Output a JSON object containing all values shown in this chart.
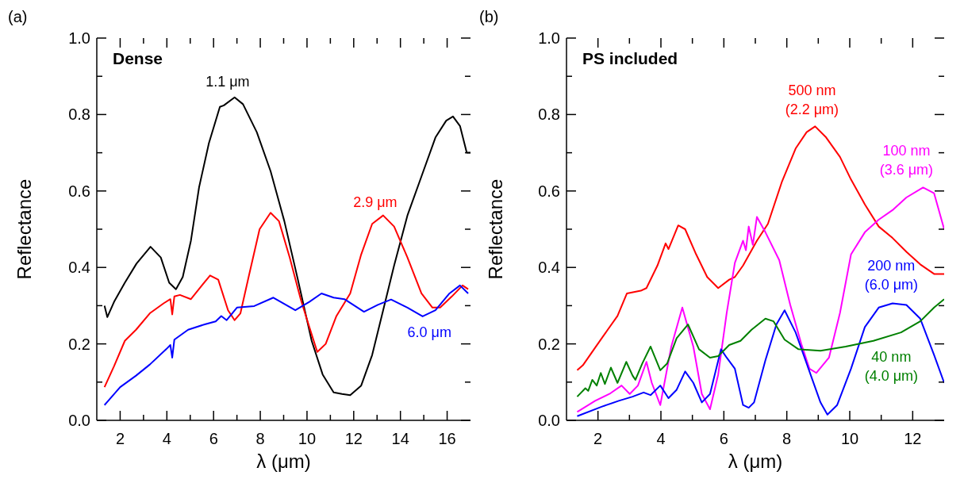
{
  "chart_data": [
    {
      "type": "line",
      "title": "Dense",
      "xlabel": "λ (μm)",
      "ylabel": "Reflectance",
      "xlim": [
        1,
        17
      ],
      "ylim": [
        0,
        1
      ],
      "xticks": [
        2,
        {
          "value": 3,
          "label": null
        },
        4,
        {
          "value": 5,
          "label": null
        },
        6,
        {
          "value": 7,
          "label": null
        },
        8,
        {
          "value": 9,
          "label": null
        },
        10,
        {
          "value": 11,
          "label": null
        },
        12,
        {
          "value": 13,
          "label": null
        },
        14,
        {
          "value": 15,
          "label": null
        },
        16
      ],
      "yticks": [
        {
          "value": 0,
          "label": "0.0"
        },
        {
          "value": 0.1,
          "label": null
        },
        {
          "value": 0.2,
          "label": "0.2"
        },
        {
          "value": 0.3,
          "label": null
        },
        {
          "value": 0.4,
          "label": "0.4"
        },
        {
          "value": 0.5,
          "label": null
        },
        {
          "value": 0.6,
          "label": "0.6"
        },
        {
          "value": 0.7,
          "label": null
        },
        {
          "value": 0.8,
          "label": "0.8"
        },
        {
          "value": 0.9,
          "label": null
        },
        {
          "value": 1,
          "label": "1.0"
        }
      ],
      "marker": "none",
      "line_style": "solid",
      "annotations": [
        "(a)"
      ],
      "series": [
        {
          "name": "1.1 μm",
          "color": "#000000",
          "x": [
            1.33,
            1.45,
            1.74,
            2.2,
            2.7,
            3.3,
            3.74,
            4.1,
            4.39,
            4.68,
            5.03,
            5.38,
            5.8,
            6.27,
            6.44,
            6.9,
            7.26,
            7.85,
            8.44,
            9.03,
            9.61,
            10.2,
            10.67,
            11.14,
            11.5,
            11.85,
            12.32,
            12.79,
            13.26,
            13.73,
            14.3,
            14.9,
            15.5,
            15.96,
            16.25,
            16.55,
            16.84,
            17.0
          ],
          "values": [
            0.3,
            0.27,
            0.31,
            0.36,
            0.41,
            0.454,
            0.426,
            0.36,
            0.343,
            0.375,
            0.47,
            0.61,
            0.725,
            0.82,
            0.824,
            0.845,
            0.827,
            0.754,
            0.652,
            0.521,
            0.368,
            0.208,
            0.12,
            0.073,
            0.069,
            0.066,
            0.091,
            0.171,
            0.288,
            0.405,
            0.536,
            0.638,
            0.74,
            0.784,
            0.795,
            0.77,
            0.7,
            0.7
          ]
        },
        {
          "name": "2.9 μm",
          "color": "#ff0000",
          "x": [
            1.33,
            1.74,
            2.2,
            2.68,
            3.27,
            3.86,
            4.15,
            4.23,
            4.32,
            4.56,
            5.03,
            5.5,
            5.85,
            6.2,
            6.62,
            6.9,
            7.15,
            7.5,
            7.97,
            8.44,
            8.8,
            9.26,
            9.73,
            10.1,
            10.44,
            10.8,
            11.26,
            11.85,
            12.32,
            12.79,
            13.26,
            13.73,
            14.3,
            14.9,
            15.37,
            15.7,
            16.2,
            16.66,
            16.9
          ],
          "values": [
            0.087,
            0.142,
            0.208,
            0.237,
            0.28,
            0.306,
            0.317,
            0.277,
            0.324,
            0.328,
            0.317,
            0.353,
            0.379,
            0.368,
            0.288,
            0.262,
            0.28,
            0.375,
            0.5,
            0.543,
            0.521,
            0.426,
            0.317,
            0.244,
            0.179,
            0.2,
            0.273,
            0.332,
            0.434,
            0.514,
            0.536,
            0.507,
            0.426,
            0.332,
            0.295,
            0.295,
            0.324,
            0.353,
            0.343
          ]
        },
        {
          "name": "6.0 μm",
          "color": "#0000ff",
          "x": [
            1.33,
            2.0,
            2.68,
            3.27,
            3.97,
            4.15,
            4.23,
            4.32,
            4.91,
            5.62,
            6.09,
            6.33,
            6.56,
            7.0,
            7.74,
            8.56,
            9.5,
            10.1,
            10.62,
            11.14,
            11.6,
            12.44,
            13.03,
            13.6,
            14.3,
            14.95,
            15.5,
            16.1,
            16.55,
            16.9
          ],
          "values": [
            0.04,
            0.087,
            0.117,
            0.146,
            0.186,
            0.197,
            0.164,
            0.211,
            0.237,
            0.251,
            0.259,
            0.273,
            0.262,
            0.295,
            0.299,
            0.321,
            0.288,
            0.31,
            0.332,
            0.321,
            0.317,
            0.284,
            0.302,
            0.316,
            0.295,
            0.272,
            0.288,
            0.332,
            0.353,
            0.332
          ]
        }
      ]
    },
    {
      "type": "line",
      "title": "PS included",
      "xlabel": "λ (μm)",
      "ylabel": "Reflectance",
      "xlim": [
        1,
        13
      ],
      "ylim": [
        0,
        1
      ],
      "xticks": [
        2,
        {
          "value": 3,
          "label": null
        },
        4,
        {
          "value": 5,
          "label": null
        },
        6,
        {
          "value": 7,
          "label": null
        },
        8,
        {
          "value": 9,
          "label": null
        },
        10,
        {
          "value": 11,
          "label": null
        },
        12
      ],
      "yticks": [
        {
          "value": 0,
          "label": "0.0"
        },
        {
          "value": 0.1,
          "label": null
        },
        {
          "value": 0.2,
          "label": "0.2"
        },
        {
          "value": 0.3,
          "label": null
        },
        {
          "value": 0.4,
          "label": "0.4"
        },
        {
          "value": 0.5,
          "label": null
        },
        {
          "value": 0.6,
          "label": "0.6"
        },
        {
          "value": 0.7,
          "label": null
        },
        {
          "value": 0.8,
          "label": "0.8"
        },
        {
          "value": 0.9,
          "label": null
        },
        {
          "value": 1,
          "label": "1.0"
        }
      ],
      "marker": "none",
      "line_style": "solid",
      "annotations": [
        "(b)"
      ],
      "series": [
        {
          "name": "500 nm (2.2 μm)",
          "color": "#ff0000",
          "x": [
            1.34,
            1.52,
            1.91,
            2.31,
            2.62,
            2.92,
            3.36,
            3.54,
            3.89,
            4.15,
            4.24,
            4.55,
            4.77,
            5.12,
            5.47,
            5.82,
            6.17,
            6.35,
            6.61,
            7.05,
            7.4,
            7.84,
            8.28,
            8.63,
            8.9,
            9.25,
            9.69,
            10.04,
            10.48,
            10.92,
            11.36,
            11.8,
            12.24,
            12.68,
            13.0
          ],
          "values": [
            0.131,
            0.144,
            0.19,
            0.237,
            0.273,
            0.332,
            0.339,
            0.346,
            0.405,
            0.463,
            0.448,
            0.51,
            0.5,
            0.434,
            0.375,
            0.346,
            0.368,
            0.375,
            0.405,
            0.47,
            0.514,
            0.623,
            0.711,
            0.754,
            0.769,
            0.74,
            0.689,
            0.63,
            0.565,
            0.507,
            0.477,
            0.441,
            0.408,
            0.383,
            0.383
          ]
        },
        {
          "name": "100 nm (3.6 μm)",
          "color": "#ff00ff",
          "x": [
            1.34,
            1.91,
            2.4,
            2.75,
            3.01,
            3.27,
            3.54,
            3.71,
            3.98,
            4.33,
            4.68,
            5.03,
            5.3,
            5.56,
            5.82,
            6.09,
            6.35,
            6.61,
            6.7,
            6.79,
            6.92,
            7.05,
            7.32,
            7.76,
            8.11,
            8.46,
            8.72,
            8.94,
            9.34,
            9.69,
            10.04,
            10.48,
            10.92,
            11.36,
            11.8,
            12.33,
            12.68,
            13.0
          ],
          "values": [
            0.022,
            0.051,
            0.071,
            0.091,
            0.069,
            0.091,
            0.153,
            0.098,
            0.04,
            0.193,
            0.295,
            0.193,
            0.069,
            0.029,
            0.12,
            0.281,
            0.412,
            0.47,
            0.445,
            0.507,
            0.459,
            0.532,
            0.492,
            0.419,
            0.302,
            0.2,
            0.135,
            0.124,
            0.164,
            0.281,
            0.434,
            0.492,
            0.525,
            0.55,
            0.583,
            0.609,
            0.594,
            0.5
          ]
        },
        {
          "name": "200 nm (6.0 μm)",
          "color": "#0000ff",
          "x": [
            1.34,
            2.13,
            2.66,
            3.1,
            3.45,
            3.67,
            3.98,
            4.24,
            4.5,
            4.77,
            5.03,
            5.3,
            5.56,
            5.91,
            6.09,
            6.35,
            6.61,
            6.79,
            6.96,
            7.32,
            7.67,
            7.93,
            8.28,
            8.72,
            9.07,
            9.29,
            9.6,
            10.04,
            10.48,
            10.92,
            11.36,
            11.8,
            12.24,
            12.68,
            13.0
          ],
          "values": [
            0.011,
            0.036,
            0.051,
            0.062,
            0.073,
            0.066,
            0.091,
            0.058,
            0.08,
            0.128,
            0.098,
            0.047,
            0.069,
            0.186,
            0.164,
            0.135,
            0.04,
            0.033,
            0.047,
            0.157,
            0.251,
            0.288,
            0.23,
            0.128,
            0.047,
            0.015,
            0.04,
            0.135,
            0.244,
            0.295,
            0.306,
            0.302,
            0.266,
            0.171,
            0.098
          ]
        },
        {
          "name": "40 nm (4.0 μm)",
          "color": "#008000",
          "x": [
            1.34,
            1.6,
            1.69,
            1.82,
            1.96,
            2.09,
            2.22,
            2.41,
            2.62,
            2.9,
            3.1,
            3.19,
            3.41,
            3.67,
            3.98,
            4.2,
            4.5,
            4.86,
            5.21,
            5.56,
            5.82,
            6.17,
            6.53,
            6.88,
            7.32,
            7.58,
            7.93,
            8.37,
            9.07,
            9.87,
            10.75,
            11.63,
            12.24,
            12.68,
            13.0
          ],
          "values": [
            0.062,
            0.084,
            0.077,
            0.106,
            0.091,
            0.124,
            0.095,
            0.138,
            0.098,
            0.153,
            0.117,
            0.106,
            0.149,
            0.193,
            0.131,
            0.149,
            0.215,
            0.251,
            0.186,
            0.164,
            0.168,
            0.197,
            0.208,
            0.237,
            0.266,
            0.259,
            0.211,
            0.186,
            0.182,
            0.193,
            0.208,
            0.23,
            0.259,
            0.295,
            0.317
          ]
        }
      ]
    }
  ]
}
